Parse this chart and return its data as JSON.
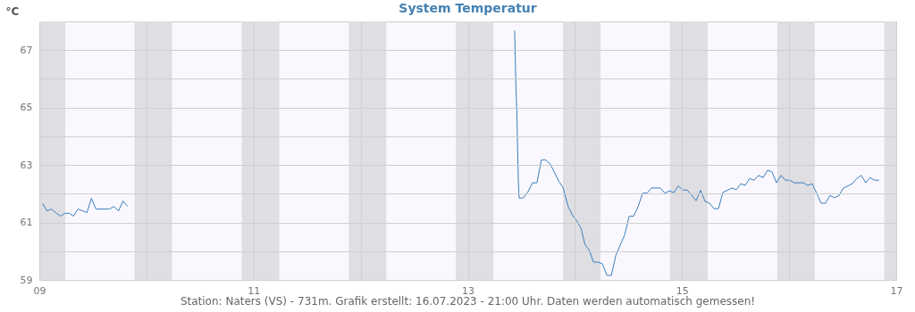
{
  "chart_data": {
    "type": "line",
    "title": "System Temperatur",
    "ylabel": "°C",
    "annotations": [
      "Station: Naters (VS) - 731m. Grafik erstellt: 16.07.2023 - 21:00 Uhr. Daten werden automatisch gemessen!"
    ],
    "x": [
      "2023-07-09T00:45",
      "2023-07-09T01:45",
      "2023-07-09T02:40",
      "2023-07-09T03:50",
      "2023-07-09T04:45",
      "2023-07-09T05:45",
      "2023-07-09T06:45",
      "2023-07-09T07:40",
      "2023-07-09T08:40",
      "2023-07-09T10:40",
      "2023-07-09T11:40",
      "2023-07-09T12:40",
      "2023-07-09T15:45",
      "2023-07-09T16:45",
      "2023-07-09T17:45",
      "2023-07-09T18:45",
      "2023-07-09T19:45",
      "2023-07-11T12:00",
      "2023-07-13T10:30",
      "2023-07-13T10:35",
      "2023-07-13T10:45",
      "2023-07-13T11:00",
      "2023-07-13T11:10",
      "2023-07-13T11:20",
      "2023-07-13T11:30",
      "2023-07-13T12:25",
      "2023-07-13T13:30",
      "2023-07-13T14:30",
      "2023-07-13T15:30",
      "2023-07-13T16:30",
      "2023-07-13T17:25",
      "2023-07-13T18:30",
      "2023-07-13T20:25",
      "2023-07-13T21:20",
      "2023-07-13T22:30",
      "2023-07-13T23:30",
      "2023-07-14T00:30",
      "2023-07-14T01:25",
      "2023-07-14T02:15",
      "2023-07-14T03:10",
      "2023-07-14T04:10",
      "2023-07-14T05:10",
      "2023-07-14T06:10",
      "2023-07-14T07:10",
      "2023-07-14T08:10",
      "2023-07-14T09:10",
      "2023-07-14T10:30",
      "2023-07-14T11:10",
      "2023-07-14T12:10",
      "2023-07-14T13:10",
      "2023-07-14T14:10",
      "2023-07-14T15:10",
      "2023-07-14T16:10",
      "2023-07-14T17:10",
      "2023-07-14T19:10",
      "2023-07-14T20:10",
      "2023-07-14T21:10",
      "2023-07-14T22:10",
      "2023-07-14T23:10",
      "2023-07-15T00:10",
      "2023-07-15T01:10",
      "2023-07-15T02:10",
      "2023-07-15T03:10",
      "2023-07-15T04:10",
      "2023-07-15T05:10",
      "2023-07-15T06:10",
      "2023-07-15T07:10",
      "2023-07-15T08:10",
      "2023-07-15T09:10",
      "2023-07-15T10:10",
      "2023-07-15T11:10",
      "2023-07-15T12:10",
      "2023-07-15T13:10",
      "2023-07-15T14:10",
      "2023-07-15T15:10",
      "2023-07-15T16:10",
      "2023-07-15T17:10",
      "2023-07-15T18:10",
      "2023-07-15T19:10",
      "2023-07-15T20:10",
      "2023-07-15T21:10",
      "2023-07-15T22:10",
      "2023-07-15T23:10",
      "2023-07-16T00:10",
      "2023-07-16T01:10",
      "2023-07-16T03:10",
      "2023-07-16T04:10",
      "2023-07-16T05:10",
      "2023-07-16T06:10",
      "2023-07-16T07:10",
      "2023-07-16T08:10",
      "2023-07-16T09:10",
      "2023-07-16T10:10",
      "2023-07-16T11:10",
      "2023-07-16T12:10",
      "2023-07-16T13:10",
      "2023-07-16T14:10",
      "2023-07-16T15:10",
      "2023-07-16T16:10",
      "2023-07-16T17:10",
      "2023-07-16T18:10",
      "2023-07-16T19:10",
      "2023-07-16T20:10"
    ],
    "series": [
      {
        "color": "#3a7ebf",
        "values": [
          61.66,
          61.4,
          61.47,
          61.32,
          61.22,
          61.32,
          61.32,
          61.22,
          61.47,
          61.34,
          61.84,
          61.47,
          61.47,
          61.56,
          61.4,
          61.75,
          61.56,
          null,
          67.68,
          67.1,
          65.95,
          64.78,
          63.6,
          62.43,
          61.85,
          61.85,
          62.07,
          62.38,
          62.38,
          63.18,
          63.18,
          63.03,
          62.43,
          62.22,
          61.55,
          61.24,
          61.04,
          60.78,
          60.23,
          60.05,
          59.62,
          59.62,
          59.56,
          59.16,
          59.16,
          59.85,
          60.34,
          60.57,
          61.22,
          61.22,
          61.55,
          62.02,
          62.02,
          62.2,
          62.2,
          62.02,
          62.1,
          62.04,
          62.27,
          62.13,
          62.13,
          61.95,
          61.76,
          62.12,
          61.73,
          61.67,
          61.48,
          61.48,
          62.05,
          62.12,
          62.2,
          62.14,
          62.35,
          62.29,
          62.53,
          62.47,
          62.64,
          62.56,
          62.82,
          62.76,
          62.38,
          62.64,
          62.47,
          62.47,
          62.38,
          62.38,
          62.29,
          62.35,
          62.02,
          61.67,
          61.67,
          61.94,
          61.86,
          61.94,
          62.2,
          62.27,
          62.35,
          62.53,
          62.64,
          62.38,
          62.56,
          62.47,
          62.47
        ]
      }
    ],
    "xlim": [
      "2023-07-09",
      "2023-07-17"
    ],
    "xticks": [
      {
        "value": "2023-07-09",
        "label": "09"
      },
      {
        "value": "2023-07-10",
        "label": null
      },
      {
        "value": "2023-07-11",
        "label": "11"
      },
      {
        "value": "2023-07-12",
        "label": null
      },
      {
        "value": "2023-07-13",
        "label": "13"
      },
      {
        "value": "2023-07-14",
        "label": null
      },
      {
        "value": "2023-07-15",
        "label": "15"
      },
      {
        "value": "2023-07-16",
        "label": null
      },
      {
        "value": "2023-07-17",
        "label": "17"
      }
    ],
    "ylim": [
      59,
      68
    ],
    "yticks": [
      59,
      {
        "value": 60,
        "label": null
      },
      61,
      {
        "value": 62,
        "label": null
      },
      63,
      {
        "value": 64,
        "label": null
      },
      65,
      {
        "value": 66,
        "label": null
      },
      67
    ],
    "grid": true,
    "bands": [
      {
        "axis": "x",
        "from": "2023-07-09T00:00",
        "to": "2023-07-09T05:50",
        "color": "#dfdfe3"
      },
      {
        "axis": "x",
        "from": "2023-07-09T21:20",
        "to": "2023-07-10T05:45",
        "color": "#dfdfe3"
      },
      {
        "axis": "x",
        "from": "2023-07-10T21:20",
        "to": "2023-07-11T05:45",
        "color": "#dfdfe3"
      },
      {
        "axis": "x",
        "from": "2023-07-11T21:20",
        "to": "2023-07-12T05:45",
        "color": "#dfdfe3"
      },
      {
        "axis": "x",
        "from": "2023-07-12T21:20",
        "to": "2023-07-13T05:45",
        "color": "#dfdfe3"
      },
      {
        "axis": "x",
        "from": "2023-07-13T21:20",
        "to": "2023-07-14T05:45",
        "color": "#dfdfe3"
      },
      {
        "axis": "x",
        "from": "2023-07-14T21:20",
        "to": "2023-07-15T05:45",
        "color": "#dfdfe3"
      },
      {
        "axis": "x",
        "from": "2023-07-15T21:20",
        "to": "2023-07-16T05:45",
        "color": "#dfdfe3"
      },
      {
        "axis": "x",
        "from": "2023-07-16T21:20",
        "to": "2023-07-17T00:00",
        "color": "#dfdfe3"
      }
    ]
  }
}
